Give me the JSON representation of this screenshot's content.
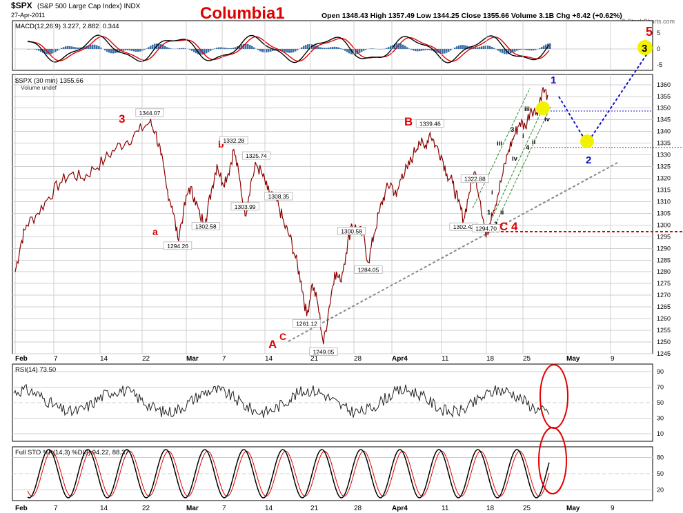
{
  "header": {
    "symbol": "$SPX",
    "name": "(S&P 500 Large Cap Index) INDX",
    "date": "27-Apr-2011",
    "chart_title": "Columbia1",
    "ohlc": "Open 1348.43 High 1357.49 Low 1344.25 Close 1355.66 Volume 3.1B Chg +8.42 (+0.62%)",
    "watermark": "© StockCharts.com"
  },
  "colors": {
    "price": "#8b0000",
    "macd_line": "#000000",
    "macd_signal": "#e00000",
    "macd_hist": "#3a6ea5",
    "wave_red": "#e00000",
    "wave_blue": "#1010c0",
    "highlight": "#f2f200",
    "channel": "#2e8b2e"
  },
  "panels": {
    "macd_label": "MACD(12,26,9) 3.227, 2.882, 0.344",
    "price_label": "$SPX (30 min) 1355.66",
    "volume_label": "Volume undef",
    "rsi_label": "RSI(14) 73.50",
    "sto_label": "Full STO %K(14,3) %D(3) 94.22, 88.37"
  },
  "chart_data": {
    "type": "line",
    "x_labels": [
      "Feb",
      "7",
      "14",
      "22",
      "Mar",
      "7",
      "14",
      "21",
      "28",
      "Apr4",
      "11",
      "18",
      "25",
      "May",
      "9"
    ],
    "price": {
      "ylim": [
        1245,
        1362
      ],
      "yticks": [
        1245,
        1250,
        1255,
        1260,
        1265,
        1270,
        1275,
        1280,
        1285,
        1290,
        1295,
        1300,
        1305,
        1310,
        1315,
        1320,
        1325,
        1330,
        1335,
        1340,
        1345,
        1350,
        1355,
        1360
      ],
      "points": [
        [
          0,
          1280
        ],
        [
          1,
          1292
        ],
        [
          2,
          1300
        ],
        [
          4,
          1305
        ],
        [
          6,
          1312
        ],
        [
          8,
          1318
        ],
        [
          10,
          1322
        ],
        [
          12,
          1320
        ],
        [
          14,
          1324
        ],
        [
          16,
          1328
        ],
        [
          18,
          1333
        ],
        [
          20,
          1336
        ],
        [
          22,
          1340
        ],
        [
          24,
          1344.07
        ],
        [
          25,
          1340
        ],
        [
          26,
          1330
        ],
        [
          27,
          1316
        ],
        [
          28,
          1308
        ],
        [
          29,
          1294.26
        ],
        [
          30,
          1305
        ],
        [
          31,
          1316
        ],
        [
          32,
          1312
        ],
        [
          33,
          1303
        ],
        [
          34,
          1302.58
        ],
        [
          35,
          1315
        ],
        [
          36,
          1326
        ],
        [
          37,
          1318
        ],
        [
          38,
          1322
        ],
        [
          39,
          1332.28
        ],
        [
          40,
          1320
        ],
        [
          41,
          1303.99
        ],
        [
          42,
          1318
        ],
        [
          43,
          1325.74
        ],
        [
          44,
          1322
        ],
        [
          45,
          1315
        ],
        [
          46,
          1312
        ],
        [
          47,
          1308.35
        ],
        [
          48,
          1300
        ],
        [
          49,
          1295
        ],
        [
          50,
          1286
        ],
        [
          51,
          1276
        ],
        [
          52,
          1261.12
        ],
        [
          53,
          1275
        ],
        [
          54,
          1266
        ],
        [
          55,
          1249.05
        ],
        [
          56,
          1265
        ],
        [
          57,
          1280
        ],
        [
          58,
          1276
        ],
        [
          59,
          1288
        ],
        [
          60,
          1300.58
        ],
        [
          61,
          1298
        ],
        [
          62,
          1296
        ],
        [
          63,
          1284.05
        ],
        [
          64,
          1296
        ],
        [
          65,
          1306
        ],
        [
          66,
          1314
        ],
        [
          67,
          1318
        ],
        [
          68,
          1312
        ],
        [
          69,
          1322
        ],
        [
          70,
          1324
        ],
        [
          71,
          1330
        ],
        [
          72,
          1336
        ],
        [
          73,
          1333
        ],
        [
          74,
          1339.46
        ],
        [
          75,
          1334
        ],
        [
          76,
          1330
        ],
        [
          77,
          1322
        ],
        [
          78,
          1318
        ],
        [
          79,
          1310
        ],
        [
          80,
          1302.42
        ],
        [
          81,
          1314
        ],
        [
          82,
          1322.88
        ],
        [
          83,
          1310
        ],
        [
          84,
          1294.7
        ],
        [
          85,
          1305
        ],
        [
          86,
          1312
        ],
        [
          87,
          1322
        ],
        [
          88,
          1332
        ],
        [
          89,
          1338
        ],
        [
          90,
          1344
        ],
        [
          91,
          1342
        ],
        [
          92,
          1350
        ],
        [
          93,
          1348
        ],
        [
          94,
          1357.49
        ],
        [
          95,
          1355.66
        ]
      ],
      "annotations": [
        "1344.07",
        "1294.26",
        "1302.58",
        "1332.28",
        "1303.99",
        "1325.74",
        "1308.35",
        "1261.12",
        "1249.05",
        "1300.58",
        "1284.05",
        "1339.46",
        "1302.42",
        "1322.88",
        "1294.70"
      ],
      "wave_labels": [
        "3",
        "a",
        "b",
        "A",
        "C",
        "B",
        "C",
        "4",
        "1",
        "2",
        "5",
        "3"
      ],
      "minor_wave_labels": [
        "1",
        "2",
        "i",
        "ii",
        "iii",
        "iv",
        "3",
        "4",
        "iii",
        "iv",
        "i",
        "ii"
      ]
    },
    "macd": {
      "yticks": [
        "5",
        "0",
        "-5"
      ]
    },
    "rsi": {
      "yticks": [
        "90",
        "70",
        "50",
        "30",
        "10"
      ]
    },
    "stochastic": {
      "yticks": [
        "80",
        "50",
        "20"
      ]
    }
  }
}
